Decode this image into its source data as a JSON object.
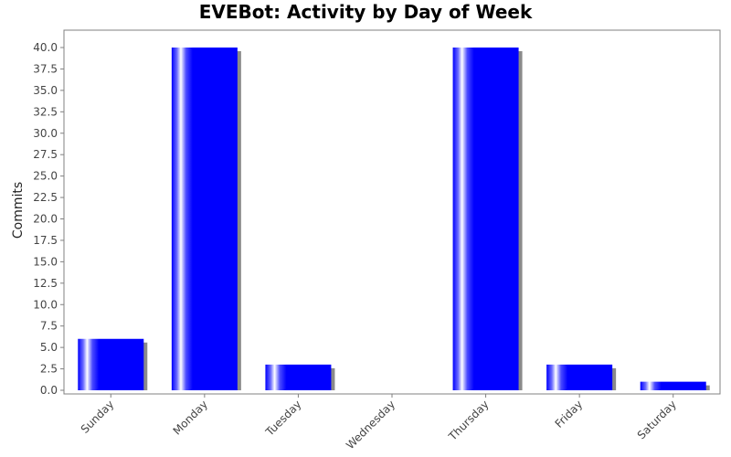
{
  "chart_data": {
    "type": "bar",
    "title": "EVEBot: Activity by Day of Week",
    "xlabel": "",
    "ylabel": "Commits",
    "categories": [
      "Sunday",
      "Monday",
      "Tuesday",
      "Wednesday",
      "Thursday",
      "Friday",
      "Saturday"
    ],
    "values": [
      6,
      40,
      3,
      0,
      40,
      3,
      1
    ],
    "ylim": [
      0,
      42
    ],
    "yticks": [
      "0.0",
      "2.5",
      "5.0",
      "7.5",
      "10.0",
      "12.5",
      "15.0",
      "17.5",
      "20.0",
      "22.5",
      "25.0",
      "27.5",
      "30.0",
      "32.5",
      "35.0",
      "37.5",
      "40.0"
    ],
    "grid": false,
    "legend": "none",
    "bar_color": "#0000ff",
    "shadow_color": "#8a8a8a"
  }
}
